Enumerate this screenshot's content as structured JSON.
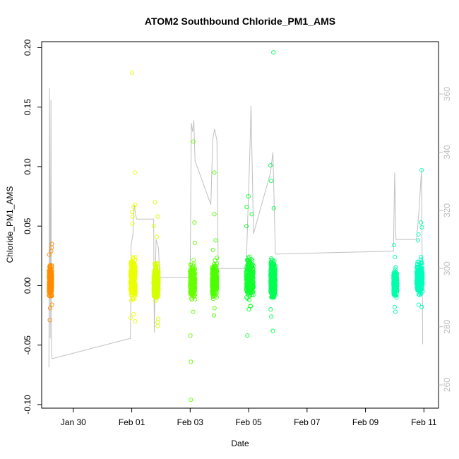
{
  "chart_data": {
    "type": "scatter",
    "title": "ATOM2 Southbound Chloride_PM1_AMS",
    "xlabel": "Date",
    "ylabel": "Chloride_PM1_AMS",
    "x_ticks": [
      "Jan 30",
      "Feb 01",
      "Feb 03",
      "Feb 05",
      "Feb 07",
      "Feb 09",
      "Feb 11"
    ],
    "y_ticks": [
      "-0.10",
      "-0.05",
      "0.00",
      "0.05",
      "0.10",
      "0.15",
      "0.20"
    ],
    "y2_ticks": [
      "260",
      "280",
      "300",
      "320",
      "340",
      "360"
    ],
    "ylim": [
      -0.103,
      0.205
    ],
    "y2lim": [
      252,
      378
    ],
    "xlim": [
      "2016-01-28T22:00",
      "2016-02-11T12:00"
    ],
    "grid": false,
    "legend": "none",
    "series": [
      {
        "marker": "open-circle",
        "color_ramp": [
          "#ff8c00",
          "#ffd700",
          "#e8ff00",
          "#66ff00",
          "#00ff44",
          "#00ffbb"
        ],
        "segments": [
          {
            "start": "2016-01-29T04:00",
            "end": "2016-01-29T06:30",
            "color": "#ff8c00",
            "center": 0.004,
            "spread": 0.008,
            "outliers": [
              0.035,
              0.032,
              0.029,
              0.026,
              -0.016,
              -0.019,
              -0.029
            ]
          },
          {
            "start": "2016-01-31T23:00",
            "end": "2016-02-01T03:00",
            "color": "#ecff00",
            "center": 0.005,
            "spread": 0.011,
            "outliers": [
              0.179,
              0.095,
              0.068,
              0.066,
              0.062,
              0.058,
              0.052,
              -0.024,
              -0.027,
              -0.03
            ]
          },
          {
            "start": "2016-02-01T18:00",
            "end": "2016-02-01T22:00",
            "color": "#d4ff00",
            "center": 0.003,
            "spread": 0.01,
            "outliers": [
              0.07,
              0.058,
              0.05,
              0.041,
              -0.028,
              -0.031,
              -0.034
            ]
          },
          {
            "start": "2016-02-03T00:00",
            "end": "2016-02-03T04:00",
            "color": "#66ff00",
            "center": 0.004,
            "spread": 0.009,
            "outliers": [
              0.121,
              0.053,
              0.036,
              -0.022,
              -0.042,
              -0.064,
              -0.096
            ]
          },
          {
            "start": "2016-02-03T18:00",
            "end": "2016-02-03T22:00",
            "color": "#4cff00",
            "center": 0.005,
            "spread": 0.009,
            "outliers": [
              0.095,
              0.06,
              0.038,
              0.03,
              -0.019,
              -0.025
            ]
          },
          {
            "start": "2016-02-04T22:00",
            "end": "2016-02-05T04:00",
            "color": "#10ff30",
            "center": 0.006,
            "spread": 0.011,
            "outliers": [
              0.075,
              0.066,
              0.06,
              0.05,
              -0.017,
              -0.02,
              -0.042
            ]
          },
          {
            "start": "2016-02-05T18:00",
            "end": "2016-02-05T22:00",
            "color": "#00ff55",
            "center": 0.005,
            "spread": 0.011,
            "outliers": [
              0.196,
              0.101,
              0.088,
              0.065,
              -0.02,
              -0.026,
              -0.038
            ]
          },
          {
            "start": "2016-02-09T23:00",
            "end": "2016-02-10T02:00",
            "color": "#00ffaa",
            "center": 0.002,
            "spread": 0.007,
            "outliers": [
              0.034,
              0.024,
              -0.018,
              -0.022
            ]
          },
          {
            "start": "2016-02-10T18:00",
            "end": "2016-02-10T23:00",
            "color": "#00ffbb",
            "center": 0.006,
            "spread": 0.009,
            "outliers": [
              0.097,
              0.053,
              0.049,
              0.043,
              0.038,
              -0.016,
              -0.018
            ]
          }
        ]
      },
      {
        "axis": "right",
        "type": "line",
        "color": "#c0c0c0",
        "points": [
          [
            "2016-01-29T04:00",
            266
          ],
          [
            "2016-01-29T04:30",
            362
          ],
          [
            "2016-01-29T05:00",
            276
          ],
          [
            "2016-01-29T05:40",
            358
          ],
          [
            "2016-01-29T06:00",
            272
          ],
          [
            "2016-01-29T06:30",
            269
          ],
          [
            "2016-01-31T23:00",
            276
          ],
          [
            "2016-01-31T23:30",
            308
          ],
          [
            "2016-02-01T01:00",
            312
          ],
          [
            "2016-02-01T02:00",
            322
          ],
          [
            "2016-02-01T03:00",
            319
          ],
          [
            "2016-02-01T04:00",
            317
          ],
          [
            "2016-02-01T18:00",
            317
          ],
          [
            "2016-02-01T18:30",
            278
          ],
          [
            "2016-02-01T20:00",
            310
          ],
          [
            "2016-02-01T22:00",
            307
          ],
          [
            "2016-02-01T23:00",
            297
          ],
          [
            "2016-02-03T00:00",
            297
          ],
          [
            "2016-02-03T01:00",
            350
          ],
          [
            "2016-02-03T02:00",
            347
          ],
          [
            "2016-02-03T03:00",
            351
          ],
          [
            "2016-02-03T04:00",
            337
          ],
          [
            "2016-02-03T17:00",
            322
          ],
          [
            "2016-02-03T18:30",
            344
          ],
          [
            "2016-02-03T20:00",
            348
          ],
          [
            "2016-02-03T22:00",
            344
          ],
          [
            "2016-02-03T23:00",
            300
          ],
          [
            "2016-02-04T22:00",
            300
          ],
          [
            "2016-02-05T01:00",
            340
          ],
          [
            "2016-02-05T02:00",
            356
          ],
          [
            "2016-02-05T04:00",
            312
          ],
          [
            "2016-02-05T18:00",
            333
          ],
          [
            "2016-02-05T20:00",
            340
          ],
          [
            "2016-02-05T22:00",
            305
          ],
          [
            "2016-02-05T23:00",
            305
          ],
          [
            "2016-02-09T23:00",
            306
          ],
          [
            "2016-02-10T00:00",
            333
          ],
          [
            "2016-02-10T01:00",
            310
          ],
          [
            "2016-02-10T02:00",
            310
          ],
          [
            "2016-02-10T18:00",
            310
          ],
          [
            "2016-02-10T20:00",
            320
          ],
          [
            "2016-02-10T22:00",
            334
          ],
          [
            "2016-02-10T23:00",
            274
          ]
        ]
      }
    ]
  }
}
